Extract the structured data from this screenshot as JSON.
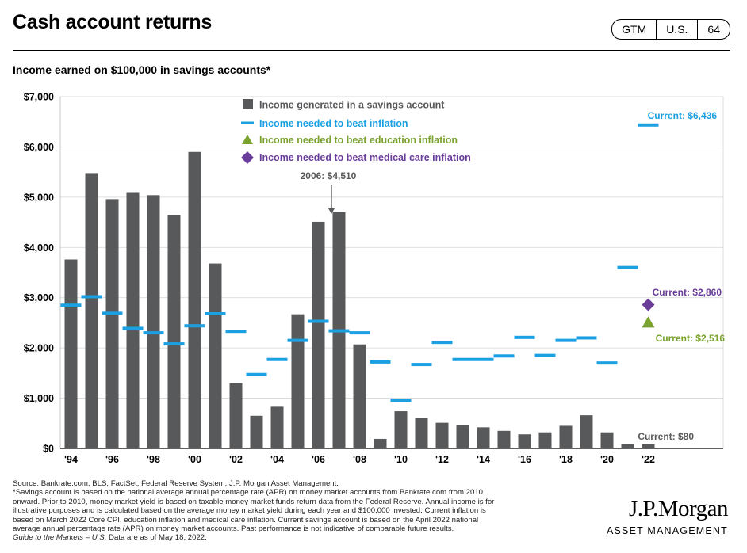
{
  "header": {
    "title": "Cash account returns",
    "badge": [
      "GTM",
      "U.S.",
      "64"
    ],
    "subtitle": "Income earned on $100,000 in savings accounts*"
  },
  "colors": {
    "bar": "#58595b",
    "inflation": "#1ba0e2",
    "education": "#7aa22e",
    "medical": "#6a3d9a"
  },
  "chart_data": {
    "type": "bar",
    "x": [
      1994,
      1995,
      1996,
      1997,
      1998,
      1999,
      2000,
      2001,
      2002,
      2003,
      2004,
      2005,
      2006,
      2007,
      2008,
      2009,
      2010,
      2011,
      2012,
      2013,
      2014,
      2015,
      2016,
      2017,
      2018,
      2019,
      2020,
      2021,
      2022
    ],
    "series": [
      {
        "name": "Income generated in a savings account",
        "kind": "bar",
        "values": [
          3760,
          5480,
          4960,
          5100,
          5040,
          4640,
          5900,
          3680,
          1300,
          650,
          830,
          2670,
          4510,
          4700,
          2070,
          190,
          740,
          600,
          510,
          470,
          420,
          350,
          280,
          320,
          450,
          660,
          320,
          90,
          80
        ]
      },
      {
        "name": "Income needed to beat inflation",
        "kind": "dash",
        "values": [
          2850,
          3020,
          2690,
          2390,
          2300,
          2080,
          2440,
          2680,
          2330,
          1470,
          1770,
          2150,
          2530,
          2340,
          2300,
          1720,
          960,
          1670,
          2110,
          1770,
          1770,
          1840,
          2210,
          1850,
          2150,
          2200,
          1700,
          3600,
          6436
        ]
      }
    ],
    "markers": [
      {
        "name": "Income needed to beat education inflation",
        "x": 2022,
        "value": 2516,
        "shape": "triangle"
      },
      {
        "name": "Income needed to beat medical care inflation",
        "x": 2022,
        "value": 2860,
        "shape": "diamond"
      }
    ],
    "x_tick_labels": [
      "'94",
      "'96",
      "'98",
      "'00",
      "'02",
      "'04",
      "'06",
      "'08",
      "'10",
      "'12",
      "'14",
      "'16",
      "'18",
      "'20",
      "'22"
    ],
    "y_tick_labels": [
      "$0",
      "$1,000",
      "$2,000",
      "$3,000",
      "$4,000",
      "$5,000",
      "$6,000",
      "$7,000"
    ],
    "ylim": [
      0,
      7000
    ],
    "legend_position": "top-center",
    "annotations": {
      "callout_2006": "2006: $4,510",
      "current_inflation": "Current: $6,436",
      "current_medical": "Current: $2,860",
      "current_education": "Current: $2,516",
      "current_savings": "Current: $80"
    }
  },
  "footnote": {
    "lines": [
      "Source: Bankrate.com, BLS, FactSet, Federal Reserve System, J.P. Morgan Asset Management.",
      "*Savings account is based on the national average annual percentage rate (APR) on money market accounts from Bankrate.com from 2010",
      "onward. Prior to 2010, money market yield is based on taxable money market funds return data from the Federal Reserve. Annual income is for",
      "illustrative purposes and is calculated based on the average money market yield during each year and $100,000 invested. Current inflation is",
      "based on March 2022 Core CPI, education inflation and medical care inflation. Current savings account is based on the April 2022 national",
      "average annual percentage rate (APR) on money market accounts. Past performance is not indicative of comparable future results."
    ],
    "guide_title": "Guide to the Markets – U.S.",
    "guide_rest": " Data are as of May 18, 2022."
  },
  "logo": {
    "name": "J.P.Morgan",
    "tagline": "ASSET MANAGEMENT"
  }
}
